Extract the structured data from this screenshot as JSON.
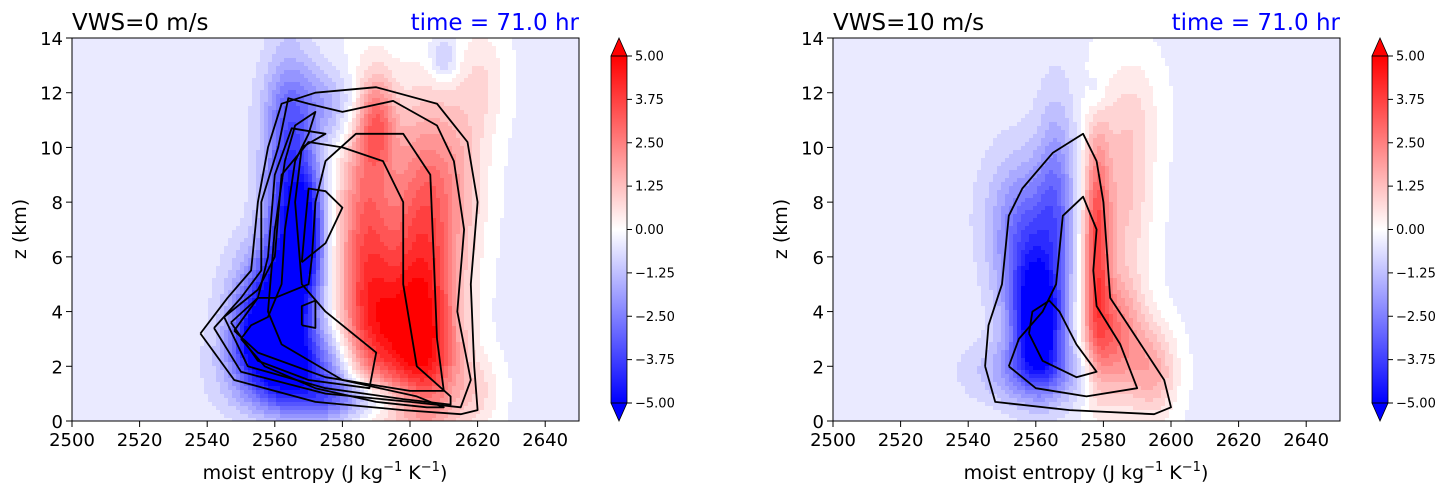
{
  "chart_data": [
    {
      "type": "contour",
      "title": "VWS=0 m/s",
      "time_label": "time = 71.0 hr",
      "time_color": "#0000ff",
      "xlabel_prefix": "moist entropy (J kg",
      "xlabel_exp1": "−1",
      "xlabel_mid": " K",
      "xlabel_exp2": "−1",
      "xlabel_suffix": ")",
      "ylabel": "z (km)",
      "xlim": [
        2500,
        2650
      ],
      "ylim": [
        0,
        14
      ],
      "xticks": [
        "2500",
        "2520",
        "2540",
        "2560",
        "2580",
        "2600",
        "2620",
        "2640"
      ],
      "yticks": [
        "0",
        "2",
        "4",
        "6",
        "8",
        "10",
        "12",
        "14"
      ],
      "colorbar": {
        "range": [
          -5.0,
          5.0
        ],
        "ticks": [
          "5.00",
          "3.75",
          "2.50",
          "1.25",
          "0.00",
          "−1.25",
          "−2.50",
          "−3.75",
          "−5.00"
        ],
        "cmap": "bwr",
        "extend": "both"
      },
      "blobs": [
        {
          "x": 2560,
          "y": 4.0,
          "sx": 8,
          "sy": 1.6,
          "a": -4.2
        },
        {
          "x": 2564,
          "y": 8.0,
          "sx": 5,
          "sy": 3.2,
          "a": -3.8
        },
        {
          "x": 2566,
          "y": 2.0,
          "sx": 12,
          "sy": 0.9,
          "a": -3.0
        },
        {
          "x": 2570,
          "y": 7.0,
          "sx": 3.5,
          "sy": 1.6,
          "a": -3.5
        },
        {
          "x": 2580,
          "y": 0.8,
          "sx": 16,
          "sy": 0.6,
          "a": -2.5
        },
        {
          "x": 2556,
          "y": 3.0,
          "sx": 6,
          "sy": 1.0,
          "a": -2.5
        },
        {
          "x": 2575,
          "y": 11.5,
          "sx": 10,
          "sy": 1.0,
          "a": -1.4
        },
        {
          "x": 2587,
          "y": 6.5,
          "sx": 6,
          "sy": 3.5,
          "a": 3.4
        },
        {
          "x": 2604,
          "y": 7.0,
          "sx": 7,
          "sy": 3.2,
          "a": 3.6
        },
        {
          "x": 2595,
          "y": 3.0,
          "sx": 9,
          "sy": 2.0,
          "a": 3.2
        },
        {
          "x": 2606,
          "y": 2.0,
          "sx": 7,
          "sy": 2.2,
          "a": 2.6
        },
        {
          "x": 2590,
          "y": 11.0,
          "sx": 4,
          "sy": 1.2,
          "a": 2.5
        },
        {
          "x": 2615,
          "y": 9.0,
          "sx": 6,
          "sy": 2.5,
          "a": 1.2
        },
        {
          "x": 2620,
          "y": 1.0,
          "sx": 5,
          "sy": 1.0,
          "a": 1.0
        },
        {
          "x": 2622,
          "y": 12.5,
          "sx": 5,
          "sy": 1.5,
          "a": 0.8
        },
        {
          "x": 2610,
          "y": 13.2,
          "sx": 3,
          "sy": 0.6,
          "a": -1.2
        }
      ],
      "contours": [
        [
          [
            2550,
            3
          ],
          [
            2557,
            2
          ],
          [
            2572,
            1.2
          ],
          [
            2590,
            0.7
          ],
          [
            2605,
            0.5
          ],
          [
            2610,
            0.5
          ],
          [
            2602,
            0.9
          ],
          [
            2580,
            1.5
          ],
          [
            2562,
            2.8
          ],
          [
            2558,
            4
          ],
          [
            2560,
            7
          ],
          [
            2563,
            9.5
          ],
          [
            2566,
            10.8
          ],
          [
            2572,
            11.3
          ],
          [
            2570,
            10.5
          ],
          [
            2566,
            9.5
          ],
          [
            2563,
            7
          ],
          [
            2562,
            5
          ],
          [
            2558,
            3.8
          ],
          [
            2553,
            3.5
          ],
          [
            2550,
            3
          ]
        ],
        [
          [
            2547,
            3.6
          ],
          [
            2555,
            2.2
          ],
          [
            2570,
            1.5
          ],
          [
            2588,
            1.2
          ],
          [
            2590,
            2.5
          ],
          [
            2575,
            4
          ],
          [
            2568,
            5
          ],
          [
            2566,
            8
          ],
          [
            2568,
            10
          ],
          [
            2575,
            10.5
          ],
          [
            2565,
            10.7
          ],
          [
            2560,
            9
          ],
          [
            2558,
            6
          ],
          [
            2555,
            4.5
          ],
          [
            2547,
            3.6
          ]
        ],
        [
          [
            2545,
            3.8
          ],
          [
            2552,
            2
          ],
          [
            2575,
            1.2
          ],
          [
            2598,
            0.8
          ],
          [
            2612,
            0.6
          ],
          [
            2612,
            0.9
          ],
          [
            2602,
            2
          ],
          [
            2598,
            5
          ],
          [
            2598,
            8
          ],
          [
            2592,
            9.5
          ],
          [
            2580,
            10
          ],
          [
            2570,
            10.2
          ],
          [
            2562,
            9
          ],
          [
            2560,
            6
          ],
          [
            2555,
            4.8
          ],
          [
            2545,
            3.8
          ]
        ],
        [
          [
            2542,
            3.4
          ],
          [
            2550,
            1.8
          ],
          [
            2575,
            1.0
          ],
          [
            2600,
            0.7
          ],
          [
            2615,
            0.5
          ],
          [
            2618,
            1.5
          ],
          [
            2614,
            4
          ],
          [
            2616,
            7
          ],
          [
            2613,
            9.5
          ],
          [
            2608,
            10.8
          ],
          [
            2595,
            11.7
          ],
          [
            2580,
            11.3
          ],
          [
            2570,
            11.6
          ],
          [
            2564,
            11.8
          ],
          [
            2561,
            10
          ],
          [
            2556,
            8
          ],
          [
            2556,
            5.5
          ],
          [
            2550,
            4.5
          ],
          [
            2542,
            3.4
          ]
        ],
        [
          [
            2548,
            3.3
          ],
          [
            2555,
            2.5
          ],
          [
            2575,
            1.6
          ],
          [
            2600,
            1.1
          ],
          [
            2610,
            1.1
          ],
          [
            2608,
            3
          ],
          [
            2607,
            6
          ],
          [
            2606,
            9
          ],
          [
            2598,
            10.5
          ],
          [
            2584,
            10.5
          ],
          [
            2575,
            9.5
          ],
          [
            2572,
            8
          ],
          [
            2571,
            6
          ],
          [
            2570,
            5
          ],
          [
            2560,
            4.5
          ],
          [
            2555,
            4.5
          ],
          [
            2548,
            3.3
          ]
        ],
        [
          [
            2568,
            5.8
          ],
          [
            2575,
            6.5
          ],
          [
            2580,
            7.8
          ],
          [
            2575,
            8.4
          ],
          [
            2570,
            8.5
          ],
          [
            2569,
            7.2
          ],
          [
            2568,
            5.8
          ]
        ],
        [
          [
            2568,
            3.5
          ],
          [
            2572,
            3.4
          ],
          [
            2572,
            4.4
          ],
          [
            2568,
            4.2
          ],
          [
            2568,
            3.5
          ]
        ],
        [
          [
            2538,
            3.2
          ],
          [
            2548,
            1.5
          ],
          [
            2572,
            0.7
          ],
          [
            2598,
            0.4
          ],
          [
            2615,
            0.25
          ],
          [
            2620,
            0.4
          ],
          [
            2619,
            2
          ],
          [
            2618,
            5
          ],
          [
            2620,
            8
          ],
          [
            2617,
            10.2
          ],
          [
            2608,
            11.6
          ],
          [
            2590,
            12.2
          ],
          [
            2572,
            12.0
          ],
          [
            2562,
            11.6
          ],
          [
            2558,
            10
          ],
          [
            2555,
            8
          ],
          [
            2553,
            5.5
          ],
          [
            2546,
            4.5
          ],
          [
            2538,
            3.2
          ]
        ]
      ]
    },
    {
      "type": "contour",
      "title": "VWS=10 m/s",
      "time_label": "time = 71.0 hr",
      "time_color": "#0000ff",
      "xlabel_prefix": "moist entropy (J kg",
      "xlabel_exp1": "−1",
      "xlabel_mid": " K",
      "xlabel_exp2": "−1",
      "xlabel_suffix": ")",
      "ylabel": "z (km)",
      "xlim": [
        2500,
        2650
      ],
      "ylim": [
        0,
        14
      ],
      "xticks": [
        "2500",
        "2520",
        "2540",
        "2560",
        "2580",
        "2600",
        "2620",
        "2640"
      ],
      "yticks": [
        "0",
        "2",
        "4",
        "6",
        "8",
        "10",
        "12",
        "14"
      ],
      "colorbar": {
        "range": [
          -5.0,
          5.0
        ],
        "ticks": [
          "5.00",
          "3.75",
          "2.50",
          "1.25",
          "0.00",
          "−1.25",
          "−2.50",
          "−3.75",
          "−5.00"
        ],
        "cmap": "bwr",
        "extend": "both"
      },
      "blobs": [
        {
          "x": 2561,
          "y": 3.5,
          "sx": 5,
          "sy": 1.4,
          "a": -4.4
        },
        {
          "x": 2558,
          "y": 5.5,
          "sx": 6,
          "sy": 2.0,
          "a": -2.5
        },
        {
          "x": 2566,
          "y": 8.0,
          "sx": 4,
          "sy": 2.5,
          "a": -2.0
        },
        {
          "x": 2560,
          "y": 1.8,
          "sx": 12,
          "sy": 0.8,
          "a": -1.8
        },
        {
          "x": 2555,
          "y": 7.5,
          "sx": 8,
          "sy": 1.8,
          "a": -1.2
        },
        {
          "x": 2578,
          "y": 6.5,
          "sx": 2.8,
          "sy": 2.8,
          "a": 3.6
        },
        {
          "x": 2583,
          "y": 3.0,
          "sx": 6,
          "sy": 1.6,
          "a": 3.0
        },
        {
          "x": 2595,
          "y": 1.8,
          "sx": 5,
          "sy": 1.2,
          "a": 1.8
        },
        {
          "x": 2586,
          "y": 8.5,
          "sx": 6,
          "sy": 2.5,
          "a": 1.5
        },
        {
          "x": 2590,
          "y": 11.5,
          "sx": 6,
          "sy": 1.5,
          "a": 0.5
        },
        {
          "x": 2578,
          "y": 12.0,
          "sx": 2,
          "sy": 0.6,
          "a": -0.6
        }
      ],
      "contours": [
        [
          [
            2545,
            2
          ],
          [
            2548,
            0.7
          ],
          [
            2570,
            0.4
          ],
          [
            2595,
            0.25
          ],
          [
            2600,
            0.5
          ],
          [
            2598,
            1.5
          ],
          [
            2590,
            3
          ],
          [
            2582,
            4.5
          ],
          [
            2580,
            8
          ],
          [
            2578,
            9.5
          ],
          [
            2574,
            10.5
          ],
          [
            2565,
            9.8
          ],
          [
            2556,
            8.5
          ],
          [
            2552,
            7.5
          ],
          [
            2550,
            5
          ],
          [
            2546,
            3.5
          ],
          [
            2545,
            2
          ]
        ],
        [
          [
            2552,
            2
          ],
          [
            2560,
            1.2
          ],
          [
            2575,
            0.9
          ],
          [
            2590,
            1.2
          ],
          [
            2585,
            2.8
          ],
          [
            2578,
            4.2
          ],
          [
            2577,
            5.5
          ],
          [
            2578,
            7
          ],
          [
            2574,
            8.2
          ],
          [
            2568,
            7.5
          ],
          [
            2566,
            5
          ],
          [
            2562,
            4
          ],
          [
            2555,
            3
          ],
          [
            2552,
            2
          ]
        ],
        [
          [
            2558,
            3.2
          ],
          [
            2562,
            2.2
          ],
          [
            2572,
            1.6
          ],
          [
            2578,
            1.8
          ],
          [
            2572,
            2.8
          ],
          [
            2567,
            4
          ],
          [
            2564,
            4.4
          ],
          [
            2559,
            4
          ],
          [
            2558,
            3.2
          ]
        ]
      ]
    }
  ]
}
